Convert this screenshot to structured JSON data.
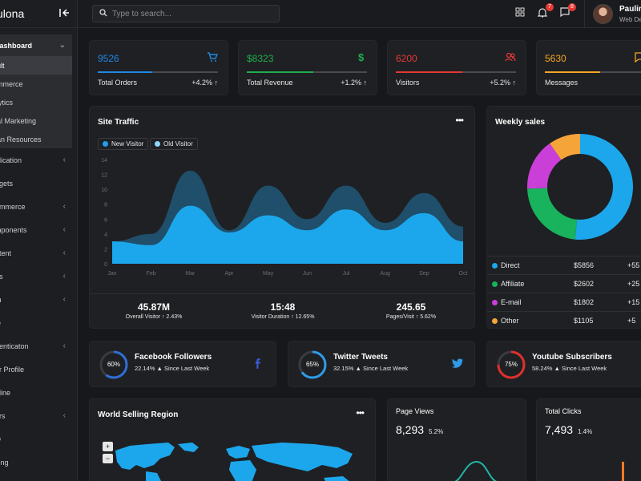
{
  "brand": {
    "name": "ulona"
  },
  "sidebar": {
    "dashboard_label": "hashboard",
    "sub_items": [
      "ult",
      "mmerce",
      "lytics",
      "al Marketing",
      "an Resources"
    ],
    "items": [
      {
        "label": "plication",
        "chevron": true
      },
      {
        "label": "dgets",
        "chevron": false
      },
      {
        "label": "ommerce",
        "chevron": true
      },
      {
        "label": "mponents",
        "chevron": true
      },
      {
        "label": "ntent",
        "chevron": true
      },
      {
        "label": "ns",
        "chevron": true
      },
      {
        "label": "m",
        "chevron": true
      },
      {
        "label": "le",
        "chevron": false
      },
      {
        "label": "henticaton",
        "chevron": true
      },
      {
        "label": "er Profile",
        "chevron": false
      },
      {
        "label": "eline",
        "chevron": false
      },
      {
        "label": "ors",
        "chevron": true
      },
      {
        "label": "Q",
        "chevron": false
      },
      {
        "label": "cing",
        "chevron": false
      }
    ]
  },
  "topbar": {
    "search_placeholder": "Type to search...",
    "notif_badge": "7",
    "msg_badge": "8",
    "user_name": "Paulin",
    "user_role": "Web De"
  },
  "stats": [
    {
      "value": "9526",
      "label": "Total Orders",
      "change": "+4.2% ↑",
      "color": "#1e88e5",
      "icon": "cart-icon",
      "fill": 0.45
    },
    {
      "value": "$8323",
      "label": "Total Revenue",
      "change": "+1.2% ↑",
      "color": "#1fae4b",
      "icon": "dollar-icon",
      "fill": 0.55
    },
    {
      "value": "6200",
      "label": "Visitors",
      "change": "+5.2% ↑",
      "color": "#e53935",
      "icon": "users-icon",
      "fill": 0.55
    },
    {
      "value": "5630",
      "label": "Messages",
      "change": "+",
      "color": "#f5a623",
      "icon": "message-icon",
      "fill": 0.55
    }
  ],
  "site_traffic": {
    "title": "Site Traffic",
    "legend": [
      {
        "label": "New Visitor",
        "color": "#1e9df2"
      },
      {
        "label": "Old Visitor",
        "color": "#8fd3ff"
      }
    ],
    "metrics": [
      {
        "value": "45.87M",
        "label": "Overall Visitor ↑ 2.43%"
      },
      {
        "value": "15:48",
        "label": "Visitor Duration ↑ 12.65%"
      },
      {
        "value": "245.65",
        "label": "Pages/Visit ↑ 5.62%"
      }
    ]
  },
  "chart_data": [
    {
      "type": "area",
      "title": "Site Traffic",
      "categories": [
        "Jan",
        "Feb",
        "Mar",
        "Apr",
        "May",
        "Jun",
        "Jul",
        "Aug",
        "Sep",
        "Oct"
      ],
      "ylim": [
        0,
        14
      ],
      "yticks": [
        0,
        2,
        4,
        6,
        8,
        10,
        12,
        14
      ],
      "series": [
        {
          "name": "Old Visitor",
          "color": "#1f4f6a",
          "values": [
            3,
            4,
            12.5,
            4.5,
            10.5,
            6,
            10.5,
            5.5,
            9.5,
            5
          ]
        },
        {
          "name": "New Visitor",
          "color": "#1ca7ec",
          "values": [
            3,
            2.5,
            7.8,
            4.2,
            6.5,
            4.5,
            7.3,
            4.5,
            6.8,
            3
          ]
        }
      ]
    },
    {
      "type": "pie",
      "title": "Weekly sales",
      "categories": [
        "Direct",
        "Affiliate",
        "E-mail",
        "Other"
      ],
      "values": [
        5856,
        2602,
        1802,
        1105
      ],
      "colors": [
        "#1ca7ec",
        "#18b35c",
        "#c93fd8",
        "#f5a43a"
      ]
    }
  ],
  "weekly_sales": {
    "title": "Weekly sales",
    "rows": [
      {
        "name": "Direct",
        "value": "$5856",
        "change": "+55",
        "color": "#1ca7ec"
      },
      {
        "name": "Affiliate",
        "value": "$2602",
        "change": "+25",
        "color": "#18b35c"
      },
      {
        "name": "E-mail",
        "value": "$1802",
        "change": "+15",
        "color": "#c93fd8"
      },
      {
        "name": "Other",
        "value": "$1105",
        "change": "+5",
        "color": "#f5a43a"
      }
    ]
  },
  "social": [
    {
      "title": "Facebook Followers",
      "sub": "22.14% ▲ Since Last Week",
      "percent_label": "60%",
      "percent": 60,
      "ring_color": "#2f6fd6",
      "icon": "facebook-icon",
      "icon_color": "#3b5bdb"
    },
    {
      "title": "Twitter Tweets",
      "sub": "32.15% ▲ Since Last Week",
      "percent_label": "65%",
      "percent": 65,
      "ring_color": "#2f9be8",
      "icon": "twitter-icon",
      "icon_color": "#2f9be8"
    },
    {
      "title": "Youtube Subscribers",
      "sub": "58.24% ▲ Since Last Week",
      "percent_label": "75%",
      "percent": 75,
      "ring_color": "#e0302c",
      "icon": "youtube-icon",
      "icon_color": "#e0302c"
    }
  ],
  "world": {
    "title": "World Selling Region",
    "zoom_in": "+",
    "zoom_out": "−"
  },
  "page_views": {
    "title": "Page Views",
    "value": "8,293",
    "change": "5.2%"
  },
  "total_clicks": {
    "title": "Total Clicks",
    "value": "7,493",
    "change": "1.4%"
  }
}
